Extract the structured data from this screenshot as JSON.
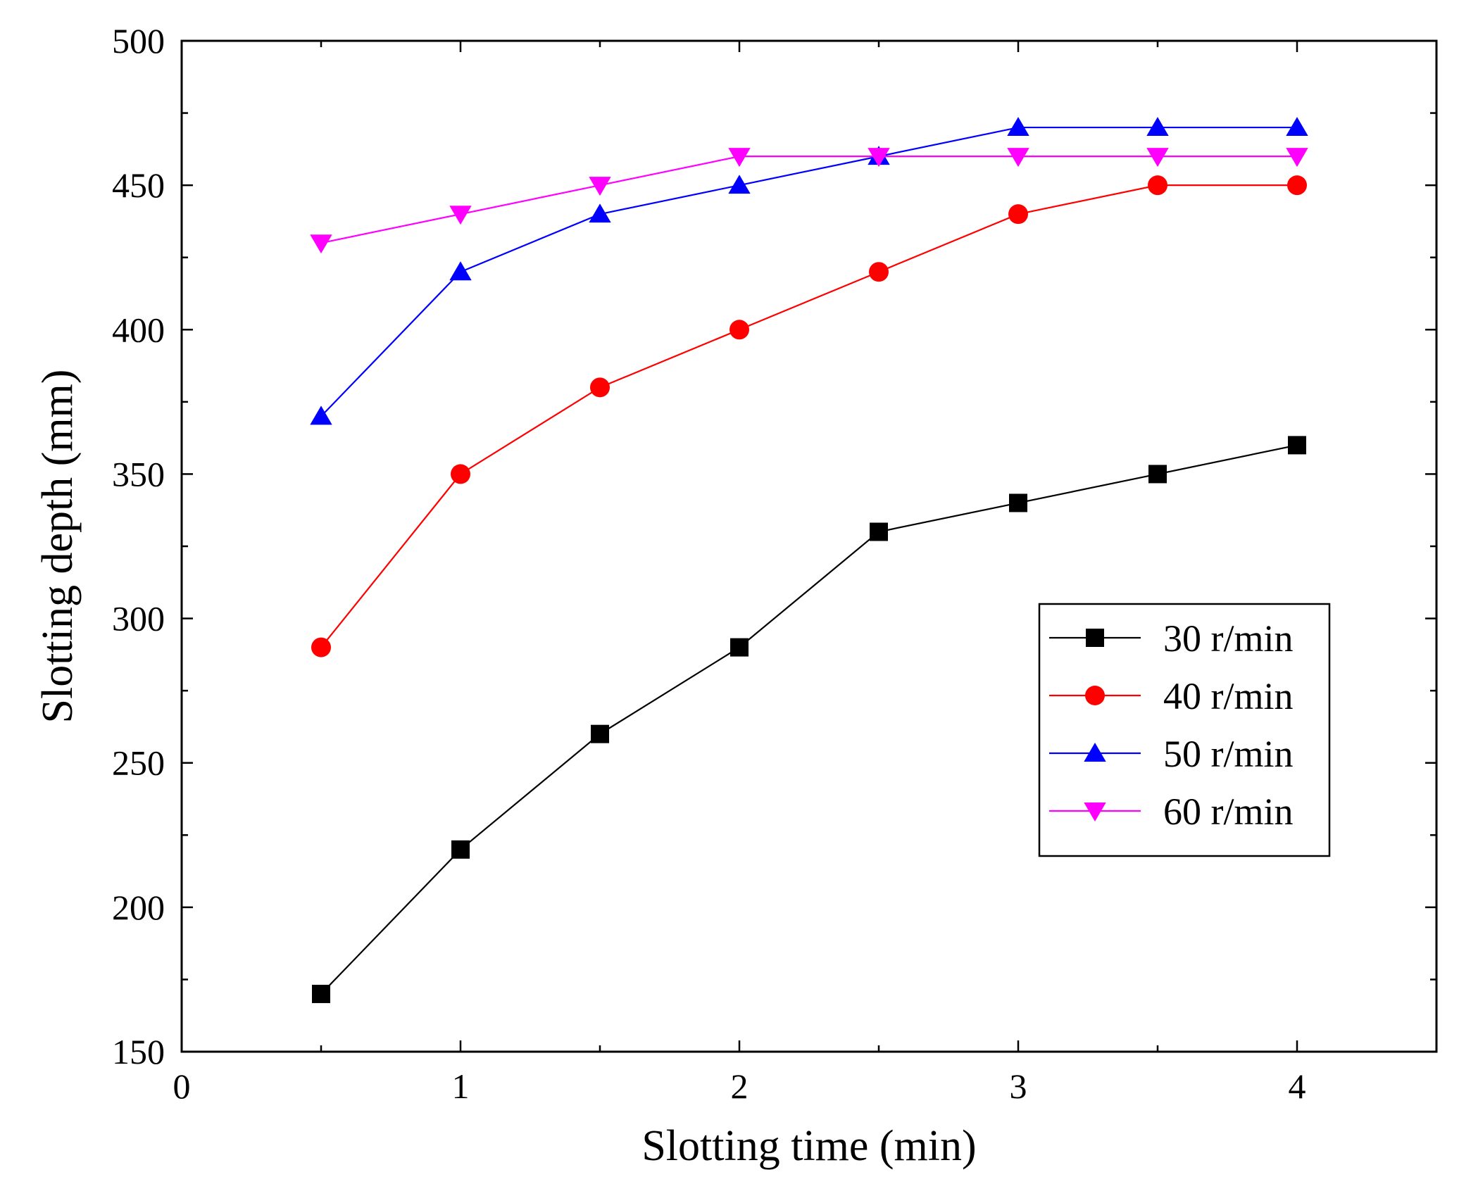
{
  "chart_data": {
    "type": "line",
    "title": "",
    "xlabel": "Slotting time (min)",
    "ylabel": "Slotting depth (mm)",
    "xlim": [
      0,
      4.5
    ],
    "ylim": [
      150,
      500
    ],
    "xticks": [
      0,
      1,
      2,
      3,
      4
    ],
    "xtick_labels": [
      "0",
      "1",
      "2",
      "3",
      "4"
    ],
    "yticks": [
      150,
      200,
      250,
      300,
      350,
      400,
      450,
      500
    ],
    "ytick_labels": [
      "150",
      "200",
      "250",
      "300",
      "350",
      "400",
      "450",
      "500"
    ],
    "grid": false,
    "legend_position": "center-right",
    "x": [
      0.5,
      1.0,
      1.5,
      2.0,
      2.5,
      3.0,
      3.5,
      4.0
    ],
    "series": [
      {
        "name": "30 r/min",
        "marker": "square",
        "color": "#000000",
        "values": [
          170,
          220,
          260,
          290,
          330,
          340,
          350,
          360
        ]
      },
      {
        "name": "40 r/min",
        "marker": "circle",
        "color": "#ff0000",
        "values": [
          290,
          350,
          380,
          400,
          420,
          440,
          450,
          450
        ]
      },
      {
        "name": "50 r/min",
        "marker": "triangle-up",
        "color": "#0000ff",
        "values": [
          370,
          420,
          440,
          450,
          460,
          470,
          470,
          470
        ]
      },
      {
        "name": "60 r/min",
        "marker": "triangle-down",
        "color": "#ff00ff",
        "values": [
          430,
          440,
          450,
          460,
          460,
          460,
          460,
          460
        ]
      }
    ]
  }
}
